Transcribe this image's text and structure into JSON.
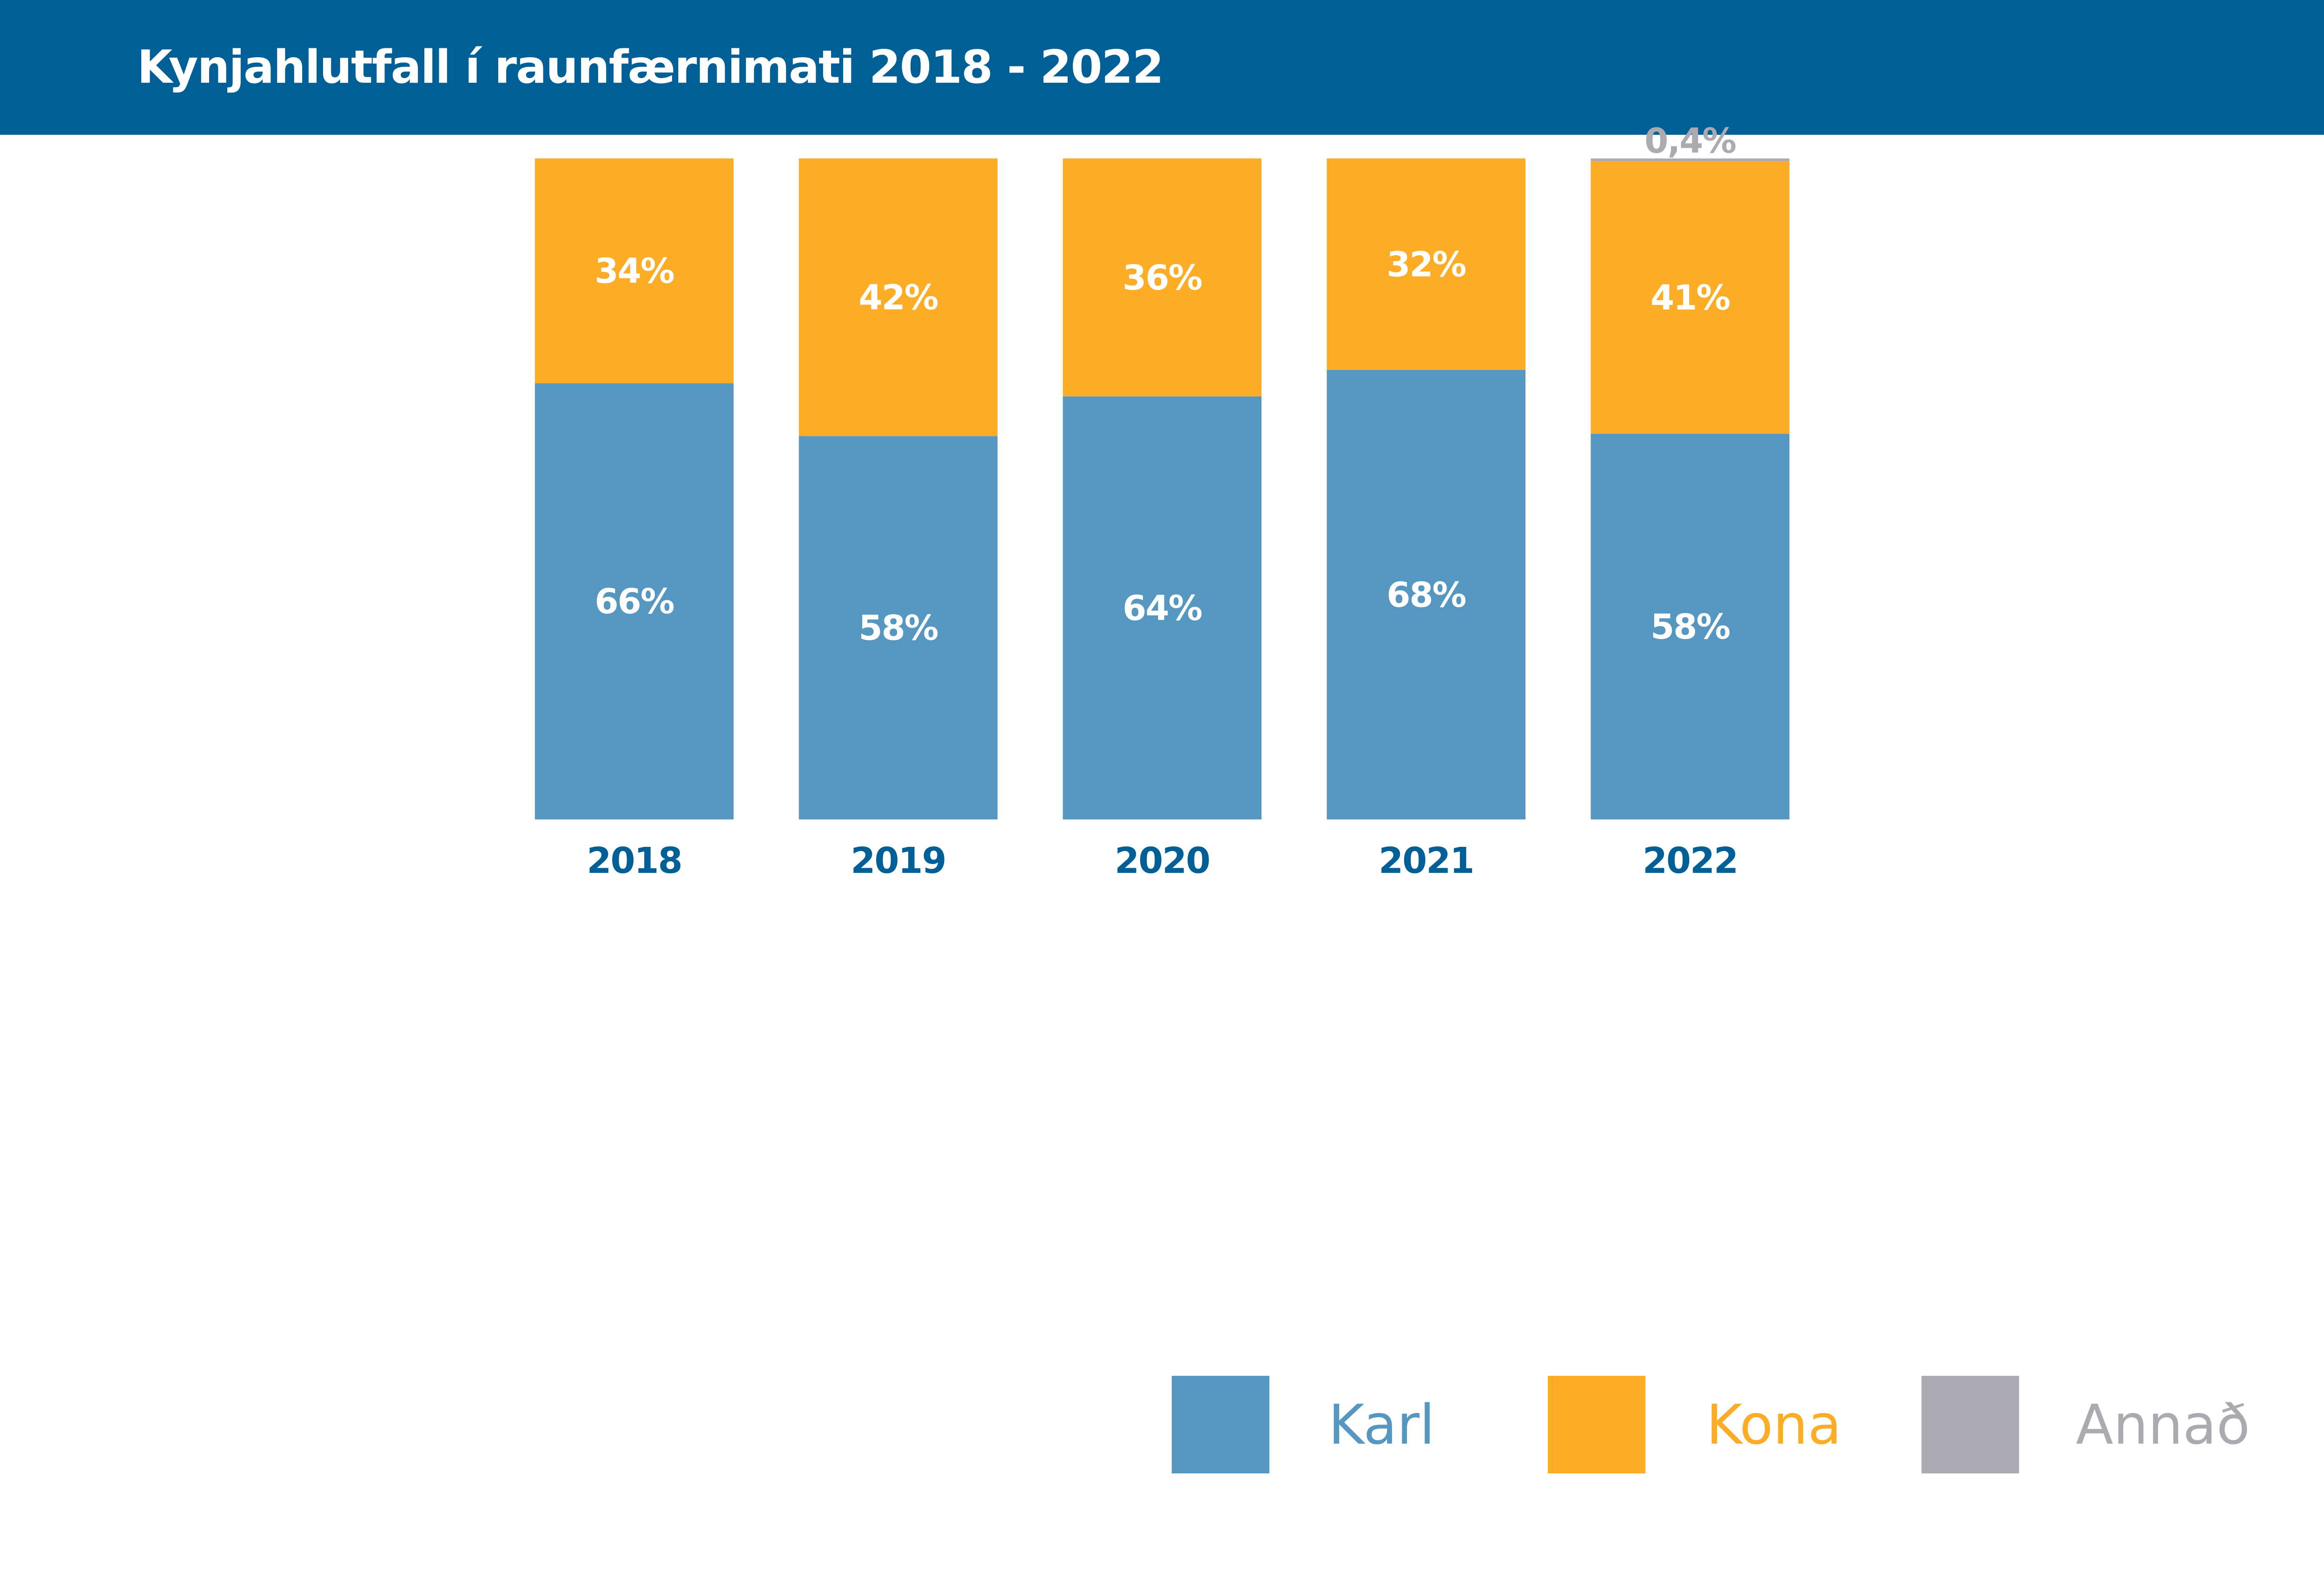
{
  "header": {
    "title": "Kynjahlutfall í raunfærnimati 2018 - 2022"
  },
  "chart_data": {
    "type": "bar",
    "stacked": true,
    "title": "Kynjahlutfall í raunfærnimati 2018 - 2022",
    "categories": [
      "2018",
      "2019",
      "2020",
      "2021",
      "2022"
    ],
    "series": [
      {
        "name": "Karl",
        "color": "#5597C1",
        "values": [
          66,
          58,
          64,
          68,
          58
        ],
        "labels": [
          "66%",
          "58%",
          "64%",
          "68%",
          "58%"
        ]
      },
      {
        "name": "Kona",
        "color": "#FDAC25",
        "values": [
          34,
          42,
          36,
          32,
          41
        ],
        "labels": [
          "34%",
          "42%",
          "36%",
          "32%",
          "41%"
        ]
      },
      {
        "name": "Annað",
        "color": "#ABAAB1",
        "values": [
          0,
          0,
          0,
          0,
          0.4
        ],
        "labels": [
          "",
          "",
          "",
          "",
          "0,4%"
        ]
      }
    ],
    "xlabel": "",
    "ylabel": "",
    "ylim": [
      0,
      100
    ],
    "grid": false,
    "legend": "bottom",
    "category_label_color": "#005F96"
  }
}
